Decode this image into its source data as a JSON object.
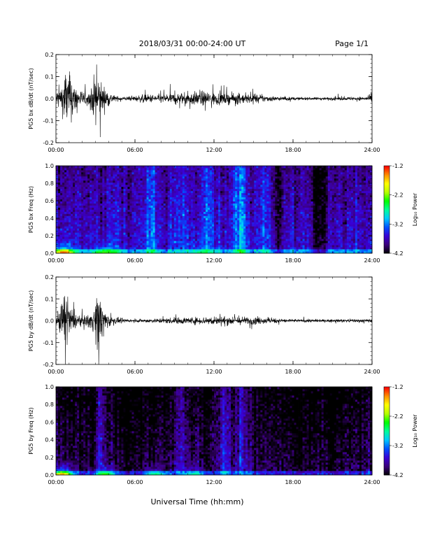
{
  "header": {
    "date_range": "2018/03/31   00:00-24:00 UT",
    "page": "Page 1/1"
  },
  "footer": {
    "xlabel": "Universal Time (hh:mm)"
  },
  "colorbar": {
    "label": "Log₁₀ Power",
    "ticks": [
      "-1.2",
      "-2.2",
      "-3.2",
      "-4.2"
    ],
    "range": [
      -4.2,
      -1.2
    ],
    "colors": [
      "#000000",
      "#3b007a",
      "#3a00d6",
      "#0050ff",
      "#00c8ff",
      "#00ff9a",
      "#00ff00",
      "#b8ff00",
      "#ffff00",
      "#ff8c00",
      "#ff0000"
    ]
  },
  "x_ticks": [
    "00:00",
    "06:00",
    "12:00",
    "18:00",
    "24:00"
  ],
  "chart_data": [
    {
      "type": "line",
      "ylabel": "PG5 bx dB/dt (nT/sec)",
      "xlim": [
        0,
        24
      ],
      "ylim": [
        -0.2,
        0.2
      ],
      "y_ticks": [
        "0.2",
        "0.1",
        "0.0",
        "-0.1",
        "-0.2"
      ],
      "grid": false,
      "envelope": [
        {
          "t": 0.0,
          "amp": 0.06
        },
        {
          "t": 0.5,
          "amp": 0.12
        },
        {
          "t": 0.7,
          "amp": 0.25
        },
        {
          "t": 1.0,
          "amp": 0.2
        },
        {
          "t": 1.5,
          "amp": 0.1
        },
        {
          "t": 2.0,
          "amp": 0.06
        },
        {
          "t": 2.5,
          "amp": 0.04
        },
        {
          "t": 3.1,
          "amp": 0.23
        },
        {
          "t": 3.6,
          "amp": 0.1
        },
        {
          "t": 4.0,
          "amp": 0.06
        },
        {
          "t": 4.5,
          "amp": 0.02
        },
        {
          "t": 5.5,
          "amp": 0.015
        },
        {
          "t": 6.5,
          "amp": 0.03
        },
        {
          "t": 8.0,
          "amp": 0.035
        },
        {
          "t": 10.0,
          "amp": 0.05
        },
        {
          "t": 11.5,
          "amp": 0.06
        },
        {
          "t": 12.5,
          "amp": 0.045
        },
        {
          "t": 14.0,
          "amp": 0.04
        },
        {
          "t": 15.5,
          "amp": 0.03
        },
        {
          "t": 17.0,
          "amp": 0.015
        },
        {
          "t": 19.0,
          "amp": 0.01
        },
        {
          "t": 21.0,
          "amp": 0.012
        },
        {
          "t": 23.5,
          "amp": 0.015
        },
        {
          "t": 24.0,
          "amp": 0.03
        }
      ]
    },
    {
      "type": "heatmap",
      "ylabel": "PG5 bx Freq (Hz)",
      "xlim": [
        0,
        24
      ],
      "ylim": [
        0,
        1.0
      ],
      "y_ticks": [
        "1.0",
        "0.8",
        "0.6",
        "0.4",
        "0.2",
        "0.0"
      ],
      "base_level": -3.6,
      "bright_bands": [
        {
          "t": 7.2,
          "level": -3.2
        },
        {
          "t": 9.5,
          "level": -3.3
        },
        {
          "t": 11.6,
          "level": -3.2
        },
        {
          "t": 13.9,
          "level": -3.0
        },
        {
          "t": 15.8,
          "level": -3.3
        }
      ],
      "dark_bands": [
        {
          "t": 16.9,
          "level": -4.0
        },
        {
          "t": 19.8,
          "level": -4.2
        },
        {
          "t": 20.3,
          "level": -4.1
        }
      ],
      "low_freq_bursts": [
        {
          "t": 0.6,
          "level": -1.4
        },
        {
          "t": 3.5,
          "level": -2.6
        },
        {
          "t": 4.2,
          "level": -2.8
        },
        {
          "t": 11.0,
          "level": -3.0
        }
      ]
    },
    {
      "type": "line",
      "ylabel": "PG5 by dB/dt (nT/sec)",
      "xlim": [
        0,
        24
      ],
      "ylim": [
        -0.2,
        0.2
      ],
      "y_ticks": [
        "0.2",
        "0.1",
        "0.0",
        "-0.1",
        "-0.2"
      ],
      "grid": false,
      "envelope": [
        {
          "t": 0.0,
          "amp": 0.03
        },
        {
          "t": 0.5,
          "amp": 0.15
        },
        {
          "t": 0.7,
          "amp": 0.25
        },
        {
          "t": 1.0,
          "amp": 0.12
        },
        {
          "t": 1.5,
          "amp": 0.06
        },
        {
          "t": 2.0,
          "amp": 0.03
        },
        {
          "t": 2.8,
          "amp": 0.08
        },
        {
          "t": 3.2,
          "amp": 0.25
        },
        {
          "t": 3.7,
          "amp": 0.08
        },
        {
          "t": 4.3,
          "amp": 0.03
        },
        {
          "t": 5.5,
          "amp": 0.008
        },
        {
          "t": 7.0,
          "amp": 0.015
        },
        {
          "t": 9.0,
          "amp": 0.025
        },
        {
          "t": 11.0,
          "amp": 0.03
        },
        {
          "t": 13.0,
          "amp": 0.035
        },
        {
          "t": 15.0,
          "amp": 0.03
        },
        {
          "t": 16.5,
          "amp": 0.02
        },
        {
          "t": 18.0,
          "amp": 0.012
        },
        {
          "t": 21.0,
          "amp": 0.01
        },
        {
          "t": 24.0,
          "amp": 0.015
        }
      ]
    },
    {
      "type": "heatmap",
      "ylabel": "PG5 by Freq (Hz)",
      "xlim": [
        0,
        24
      ],
      "ylim": [
        0,
        1.0
      ],
      "y_ticks": [
        "1.0",
        "0.8",
        "0.6",
        "0.4",
        "0.2",
        "0.0"
      ],
      "base_level": -4.0,
      "bright_bands": [
        {
          "t": 3.1,
          "level": -3.4
        },
        {
          "t": 9.5,
          "level": -3.7
        },
        {
          "t": 12.8,
          "level": -3.6
        },
        {
          "t": 14.1,
          "level": -3.5
        }
      ],
      "dark_bands": [
        {
          "t": 2.8,
          "level": -4.2
        },
        {
          "t": 5.5,
          "level": -4.2
        },
        {
          "t": 18.5,
          "level": -4.2
        },
        {
          "t": 21.0,
          "level": -4.2
        }
      ],
      "low_freq_bursts": [
        {
          "t": 0.5,
          "level": -1.6
        },
        {
          "t": 3.8,
          "level": -2.6
        },
        {
          "t": 7.5,
          "level": -2.9
        },
        {
          "t": 10.5,
          "level": -3.0
        }
      ]
    }
  ]
}
